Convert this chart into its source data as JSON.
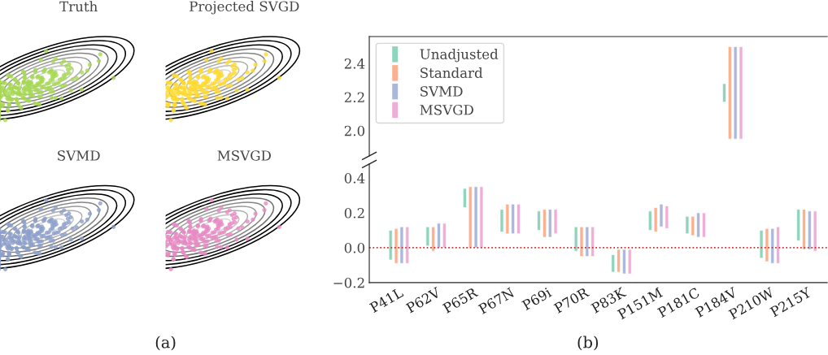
{
  "chart_data": [
    {
      "type": "other",
      "title": "Truth",
      "annotations": [
        "(a)"
      ]
    },
    {
      "type": "other",
      "title": "Projected SVGD"
    },
    {
      "type": "other",
      "title": "SVMD"
    },
    {
      "type": "other",
      "title": "MSVGD"
    },
    {
      "type": "bar",
      "categories": [
        null,
        null,
        null,
        null,
        null,
        null,
        null,
        null,
        null,
        null,
        null,
        null
      ],
      "ylim": [
        1.85,
        2.56
      ],
      "yticks": [
        {
          "value": 2.0,
          "label": "2.0"
        },
        {
          "value": 2.2,
          "label": "2.2"
        },
        {
          "value": 2.4,
          "label": "2.4"
        }
      ],
      "tick_labels": "y",
      "legend": "top left",
      "grid": false,
      "series": [
        {
          "name": "Unadjusted",
          "color": "#8fd4bd",
          "base": [
            null,
            null,
            null,
            null,
            null,
            null,
            null,
            null,
            null,
            2.17,
            null,
            null
          ],
          "values": [
            null,
            null,
            null,
            null,
            null,
            null,
            null,
            null,
            null,
            0.11,
            null,
            null
          ]
        },
        {
          "name": "Standard",
          "color": "#fdb08f",
          "base": [
            null,
            null,
            null,
            null,
            null,
            null,
            null,
            null,
            null,
            1.95,
            null,
            null
          ],
          "values": [
            null,
            null,
            null,
            null,
            null,
            null,
            null,
            null,
            null,
            0.55,
            null,
            null
          ]
        },
        {
          "name": "SVMD",
          "color": "#acb8da",
          "base": [
            null,
            null,
            null,
            null,
            null,
            null,
            null,
            null,
            null,
            1.95,
            null,
            null
          ],
          "values": [
            null,
            null,
            null,
            null,
            null,
            null,
            null,
            null,
            null,
            0.55,
            null,
            null
          ]
        },
        {
          "name": "MSVGD",
          "color": "#eeaed5",
          "base": [
            null,
            null,
            null,
            null,
            null,
            null,
            null,
            null,
            null,
            1.95,
            null,
            null
          ],
          "values": [
            null,
            null,
            null,
            null,
            null,
            null,
            null,
            null,
            null,
            0.55,
            null,
            null
          ]
        }
      ]
    },
    {
      "type": "bar",
      "categories": [
        "P41L",
        "P62V",
        "P65R",
        "P67N",
        "P69i",
        "P70R",
        "P83K",
        "P151M",
        "P181C",
        "P184V",
        "P210W",
        "P215Y"
      ],
      "ylim": [
        -0.2,
        0.48
      ],
      "yticks": [
        {
          "value": -0.2,
          "label": "−0.2"
        },
        {
          "value": 0.0,
          "label": "0.0"
        },
        {
          "value": 0.2,
          "label": "0.2"
        },
        {
          "value": 0.4,
          "label": "0.4"
        }
      ],
      "grid": false,
      "annotations": [
        "(b)"
      ],
      "ref_lines": [
        {
          "axis": "y",
          "value": 0.0,
          "color": "#d62728",
          "line_style": "dotted"
        }
      ],
      "series": [
        {
          "color": "#8fd4bd",
          "base": [
            -0.07,
            0.01,
            0.23,
            0.09,
            0.1,
            -0.02,
            -0.14,
            0.1,
            0.08,
            null,
            -0.06,
            0.04
          ],
          "values": [
            0.17,
            0.11,
            0.11,
            0.13,
            0.11,
            0.14,
            0.1,
            0.11,
            0.1,
            null,
            0.16,
            0.18
          ]
        },
        {
          "color": "#fdb08f",
          "base": [
            -0.09,
            -0.02,
            0.0,
            0.08,
            0.06,
            -0.05,
            -0.14,
            0.09,
            0.07,
            null,
            -0.08,
            -0.01
          ],
          "values": [
            0.2,
            0.14,
            0.35,
            0.17,
            0.16,
            0.17,
            0.13,
            0.14,
            0.11,
            null,
            0.19,
            0.23
          ]
        },
        {
          "color": "#acb8da",
          "base": [
            -0.09,
            0.0,
            0.0,
            0.08,
            0.06,
            -0.05,
            -0.15,
            0.12,
            0.06,
            null,
            -0.09,
            -0.01
          ],
          "values": [
            0.21,
            0.14,
            0.35,
            0.17,
            0.16,
            0.17,
            0.14,
            0.13,
            0.14,
            null,
            0.2,
            0.22
          ]
        },
        {
          "color": "#eeaed5",
          "base": [
            -0.09,
            0.0,
            0.0,
            0.08,
            0.08,
            -0.05,
            -0.15,
            0.11,
            0.06,
            null,
            -0.09,
            -0.02
          ],
          "values": [
            0.21,
            0.14,
            0.35,
            0.17,
            0.14,
            0.17,
            0.14,
            0.13,
            0.14,
            null,
            0.21,
            0.23
          ]
        }
      ]
    }
  ]
}
